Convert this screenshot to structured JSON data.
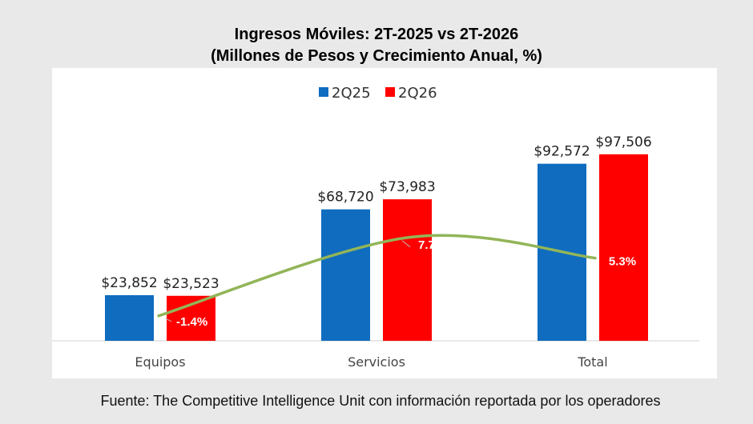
{
  "title": {
    "line1": "Ingresos Móviles: 2T-2025 vs 2T-2026",
    "line2": "(Millones de Pesos y Crecimiento Anual, %)"
  },
  "source": "Fuente: The Competitive Intelligence Unit con información reportada por los operadores",
  "chart_data": {
    "type": "bar",
    "title": "Ingresos Móviles: 2T-2025 vs 2T-2026",
    "subtitle": "(Millones de Pesos y Crecimiento Anual, %)",
    "categories": [
      "Equipos",
      "Servicios",
      "Total"
    ],
    "series": [
      {
        "name": "2Q25",
        "values": [
          23852,
          68720,
          92572
        ],
        "labels": [
          "$23,852",
          "$68,720",
          "$92,572"
        ],
        "color": "#0f6cbf"
      },
      {
        "name": "2Q26",
        "values": [
          23523,
          73983,
          97506
        ],
        "labels": [
          "$23,523",
          "$73,983",
          "$97,506"
        ],
        "color": "#ff0000"
      }
    ],
    "growth": {
      "values": [
        -1.4,
        7.7,
        5.3
      ],
      "labels": [
        "-1.4%",
        "7.7%",
        "5.3%"
      ],
      "color": "#92b558"
    },
    "ylim": [
      0,
      110000
    ],
    "legend": "top-center",
    "grid": false
  }
}
